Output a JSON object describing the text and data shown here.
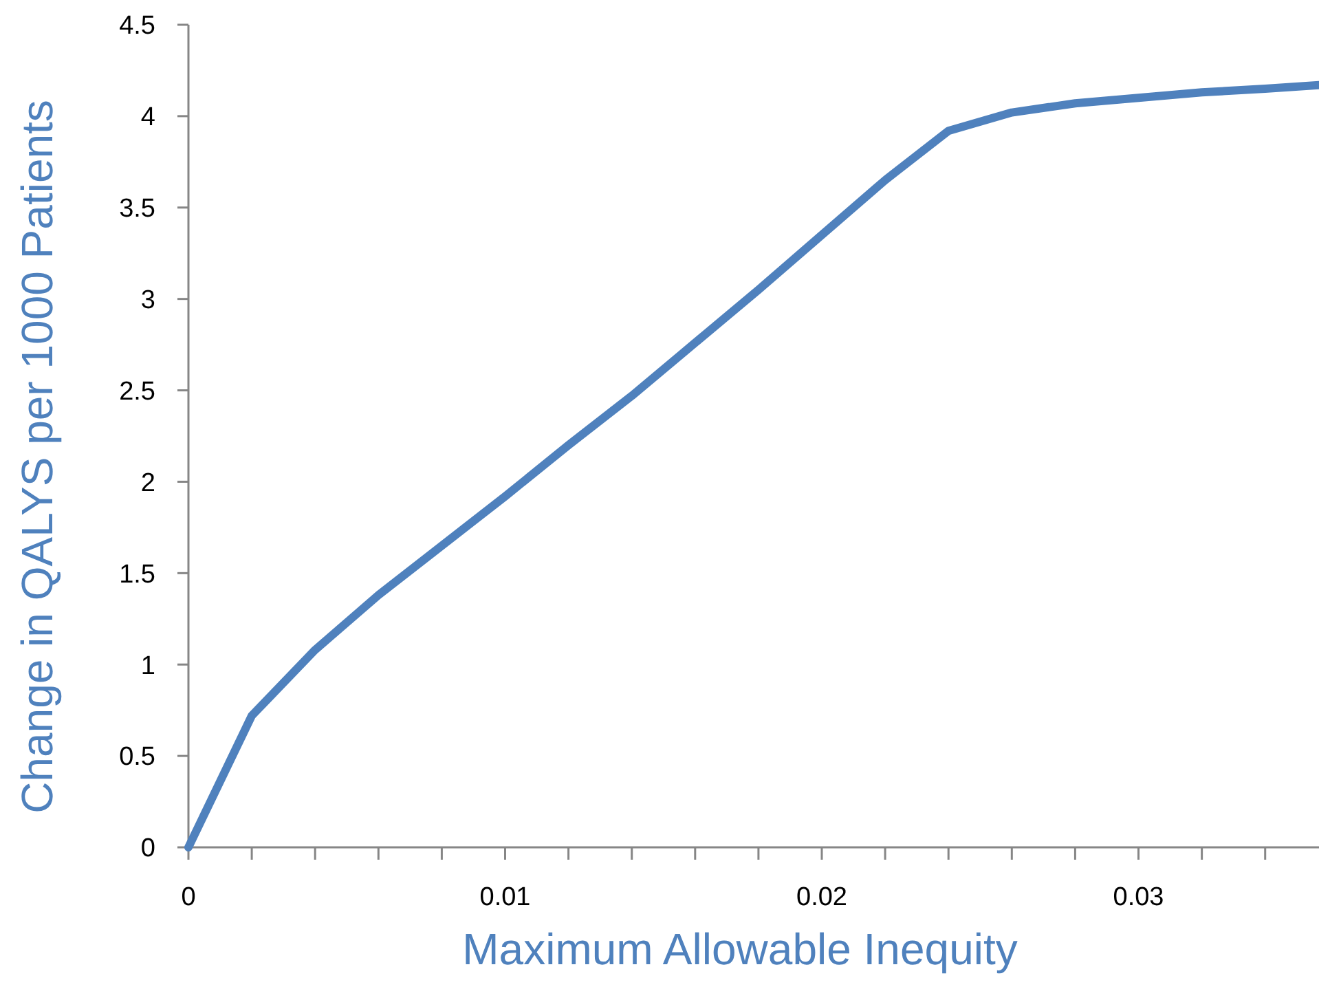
{
  "chart_data": {
    "type": "line",
    "xlabel": "Maximum Allowable Inequity",
    "ylabel": "Change in QALYS per 1000 Patients",
    "x": [
      0,
      0.002,
      0.004,
      0.006,
      0.008,
      0.01,
      0.012,
      0.014,
      0.016,
      0.018,
      0.02,
      0.022,
      0.024,
      0.026,
      0.028,
      0.03,
      0.032,
      0.034,
      0.0357
    ],
    "series": [
      {
        "color": "#4f81bd",
        "values": [
          0,
          0.72,
          1.08,
          1.38,
          1.65,
          1.92,
          2.2,
          2.47,
          2.76,
          3.05,
          3.35,
          3.65,
          3.92,
          4.02,
          4.07,
          4.1,
          4.13,
          4.15,
          4.17
        ]
      }
    ],
    "xlim": [
      0,
      0.0357
    ],
    "xticks": [
      0,
      {
        "value": 0.002,
        "label": null
      },
      {
        "value": 0.004,
        "label": null
      },
      {
        "value": 0.006,
        "label": null
      },
      {
        "value": 0.008,
        "label": null
      },
      0.01,
      {
        "value": 0.012,
        "label": null
      },
      {
        "value": 0.014,
        "label": null
      },
      {
        "value": 0.016,
        "label": null
      },
      {
        "value": 0.018,
        "label": null
      },
      0.02,
      {
        "value": 0.022,
        "label": null
      },
      {
        "value": 0.024,
        "label": null
      },
      {
        "value": 0.026,
        "label": null
      },
      {
        "value": 0.028,
        "label": null
      },
      0.03,
      {
        "value": 0.032,
        "label": null
      },
      {
        "value": 0.034,
        "label": null
      }
    ],
    "ylim": [
      0,
      4.5
    ],
    "yticks": [
      0,
      0.5,
      1,
      1.5,
      2,
      2.5,
      3,
      3.5,
      4,
      4.5
    ],
    "grid": false,
    "marker": "none",
    "line_style": "solid"
  }
}
